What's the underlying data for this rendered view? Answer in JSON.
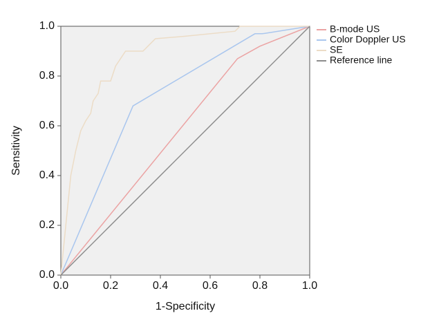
{
  "chart_data": {
    "type": "line",
    "x_label": "1-Specificity",
    "y_label": "Sensitivity",
    "xlim": [
      0,
      1
    ],
    "ylim": [
      0,
      1
    ],
    "xticks": [
      {
        "value": 0,
        "label": "0.0"
      },
      0.2,
      0.4,
      0.6,
      0.8,
      {
        "value": 1,
        "label": "1.0"
      }
    ],
    "yticks": [
      {
        "value": 0,
        "label": "0.0"
      },
      0.2,
      0.4,
      0.6,
      0.8,
      {
        "value": 1,
        "label": "1.0"
      }
    ],
    "legend": "right",
    "series": [
      {
        "name": "B-mode US",
        "color": "#eba3a3",
        "x": [
          0,
          0.71,
          0.8,
          1
        ],
        "values": [
          0,
          0.87,
          0.92,
          1
        ]
      },
      {
        "name": "Color Doppler US",
        "color": "#a9c6ee",
        "x": [
          0,
          0.29,
          0.78,
          0.81,
          1
        ],
        "values": [
          0,
          0.68,
          0.97,
          0.97,
          1
        ]
      },
      {
        "name": "SE",
        "color": "#ecdcc6",
        "x": [
          0,
          0.02,
          0.03,
          0.04,
          0.06,
          0.08,
          0.1,
          0.12,
          0.13,
          0.15,
          0.16,
          0.2,
          0.22,
          0.24,
          0.26,
          0.33,
          0.36,
          0.38,
          0.5,
          0.7,
          0.72,
          1
        ],
        "values": [
          0,
          0.2,
          0.3,
          0.4,
          0.5,
          0.58,
          0.62,
          0.65,
          0.7,
          0.73,
          0.78,
          0.78,
          0.84,
          0.87,
          0.9,
          0.9,
          0.93,
          0.95,
          0.96,
          0.98,
          1,
          1
        ]
      },
      {
        "name": "Reference line",
        "color": "#8c8c8c",
        "x": [
          0,
          1
        ],
        "values": [
          0,
          1
        ]
      }
    ]
  }
}
